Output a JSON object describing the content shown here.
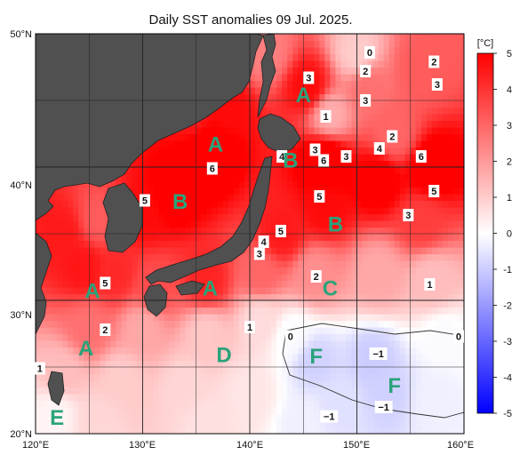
{
  "chart_data": {
    "type": "heatmap",
    "title": "Daily SST anomalies 09 Jul. 2025.",
    "x_ticks": [
      "120°E",
      "130°E",
      "140°E",
      "150°E",
      "160°E"
    ],
    "y_ticks": [
      "50°N",
      "40°N",
      "30°N",
      "20°N"
    ],
    "xlim": [
      120,
      160
    ],
    "ylim": [
      20,
      50
    ],
    "grid": true,
    "colorbar": {
      "unit": "[°C]",
      "ticks": [
        "5",
        "4",
        "3",
        "2",
        "1",
        "0",
        "-1",
        "-2",
        "-3",
        "-4",
        "-5"
      ],
      "range": [
        -5,
        5
      ],
      "colors": [
        "#0000ff",
        "#ffffff",
        "#ff0000"
      ]
    },
    "contour_labels": [
      {
        "text": "0",
        "lon": 151.2,
        "lat": 48.6
      },
      {
        "text": "2",
        "lon": 157.2,
        "lat": 47.9
      },
      {
        "text": "3",
        "lon": 145.5,
        "lat": 46.7
      },
      {
        "text": "2",
        "lon": 150.8,
        "lat": 47.2
      },
      {
        "text": "3",
        "lon": 157.5,
        "lat": 46.2
      },
      {
        "text": "3",
        "lon": 150.8,
        "lat": 45.0
      },
      {
        "text": "1",
        "lon": 147.1,
        "lat": 43.8
      },
      {
        "text": "2",
        "lon": 153.3,
        "lat": 42.3
      },
      {
        "text": "3",
        "lon": 146.1,
        "lat": 41.3
      },
      {
        "text": "4",
        "lon": 152.1,
        "lat": 41.4
      },
      {
        "text": "4",
        "lon": 143.0,
        "lat": 40.8
      },
      {
        "text": "6",
        "lon": 146.9,
        "lat": 40.5
      },
      {
        "text": "3",
        "lon": 149.0,
        "lat": 40.8
      },
      {
        "text": "6",
        "lon": 156.0,
        "lat": 40.8
      },
      {
        "text": "6",
        "lon": 136.5,
        "lat": 39.9
      },
      {
        "text": "5",
        "lon": 130.2,
        "lat": 37.5
      },
      {
        "text": "5",
        "lon": 146.5,
        "lat": 37.8
      },
      {
        "text": "5",
        "lon": 157.2,
        "lat": 38.2
      },
      {
        "text": "3",
        "lon": 154.8,
        "lat": 36.4
      },
      {
        "text": "5",
        "lon": 142.9,
        "lat": 35.2
      },
      {
        "text": "4",
        "lon": 141.3,
        "lat": 34.4
      },
      {
        "text": "3",
        "lon": 140.9,
        "lat": 33.5
      },
      {
        "text": "5",
        "lon": 126.5,
        "lat": 31.3
      },
      {
        "text": "2",
        "lon": 146.2,
        "lat": 31.8
      },
      {
        "text": "1",
        "lon": 156.8,
        "lat": 31.2
      },
      {
        "text": "2",
        "lon": 126.5,
        "lat": 27.8
      },
      {
        "text": "1",
        "lon": 140.0,
        "lat": 28.0
      },
      {
        "text": "0",
        "lon": 143.8,
        "lat": 27.3
      },
      {
        "text": "0",
        "lon": 159.5,
        "lat": 27.3
      },
      {
        "text": "1",
        "lon": 120.4,
        "lat": 24.9
      },
      {
        "text": "−1",
        "lon": 152.0,
        "lat": 26.0
      },
      {
        "text": "−1",
        "lon": 147.4,
        "lat": 21.3
      },
      {
        "text": "−1",
        "lon": 152.5,
        "lat": 22.0
      }
    ],
    "zone_labels": [
      {
        "text": "A",
        "lon": 145.0,
        "lat": 45.4
      },
      {
        "text": "A",
        "lon": 136.8,
        "lat": 41.7
      },
      {
        "text": "B",
        "lon": 143.8,
        "lat": 40.5
      },
      {
        "text": "B",
        "lon": 133.5,
        "lat": 37.4
      },
      {
        "text": "B",
        "lon": 148.0,
        "lat": 35.7
      },
      {
        "text": "A",
        "lon": 125.3,
        "lat": 30.7
      },
      {
        "text": "A",
        "lon": 136.3,
        "lat": 30.9
      },
      {
        "text": "C",
        "lon": 147.5,
        "lat": 30.9
      },
      {
        "text": "A",
        "lon": 124.7,
        "lat": 26.4
      },
      {
        "text": "D",
        "lon": 137.6,
        "lat": 25.9
      },
      {
        "text": "F",
        "lon": 146.2,
        "lat": 25.8
      },
      {
        "text": "F",
        "lon": 153.5,
        "lat": 23.6
      },
      {
        "text": "E",
        "lon": 122.0,
        "lat": 21.2
      }
    ],
    "anomaly_field": [
      {
        "lon": 122.5,
        "lat": 35.0,
        "a": 4.5
      },
      {
        "lon": 124.5,
        "lat": 32.5,
        "a": 4.6
      },
      {
        "lon": 127.5,
        "lat": 32.0,
        "a": 4.2
      },
      {
        "lon": 126.0,
        "lat": 36.0,
        "a": 3.2
      },
      {
        "lon": 130.0,
        "lat": 36.5,
        "a": 4.8
      },
      {
        "lon": 133.0,
        "lat": 38.0,
        "a": 5.3
      },
      {
        "lon": 136.0,
        "lat": 41.0,
        "a": 5.8
      },
      {
        "lon": 138.0,
        "lat": 44.5,
        "a": 4.8
      },
      {
        "lon": 134.5,
        "lat": 44.0,
        "a": 4.5
      },
      {
        "lon": 141.5,
        "lat": 48.5,
        "a": 2.5
      },
      {
        "lon": 145.5,
        "lat": 46.0,
        "a": 4.8
      },
      {
        "lon": 147.0,
        "lat": 40.5,
        "a": 5.8
      },
      {
        "lon": 152.0,
        "lat": 39.0,
        "a": 5.3
      },
      {
        "lon": 157.0,
        "lat": 40.0,
        "a": 5.5
      },
      {
        "lon": 147.0,
        "lat": 37.0,
        "a": 4.8
      },
      {
        "lon": 156.0,
        "lat": 36.0,
        "a": 3.8
      },
      {
        "lon": 156.0,
        "lat": 47.5,
        "a": 3.2
      },
      {
        "lon": 151.0,
        "lat": 46.0,
        "a": 2.8
      },
      {
        "lon": 147.5,
        "lat": 44.0,
        "a": 1.6
      },
      {
        "lon": 150.0,
        "lat": 48.5,
        "a": 1.0
      },
      {
        "lon": 153.5,
        "lat": 42.5,
        "a": 3.0
      },
      {
        "lon": 143.0,
        "lat": 35.0,
        "a": 4.5
      },
      {
        "lon": 141.0,
        "lat": 32.0,
        "a": 3.0
      },
      {
        "lon": 136.0,
        "lat": 31.5,
        "a": 4.3
      },
      {
        "lon": 131.0,
        "lat": 31.0,
        "a": 3.5
      },
      {
        "lon": 146.0,
        "lat": 32.0,
        "a": 2.2
      },
      {
        "lon": 152.0,
        "lat": 32.0,
        "a": 1.7
      },
      {
        "lon": 157.0,
        "lat": 31.5,
        "a": 1.3
      },
      {
        "lon": 125.0,
        "lat": 28.0,
        "a": 2.8
      },
      {
        "lon": 130.0,
        "lat": 28.0,
        "a": 1.7
      },
      {
        "lon": 136.0,
        "lat": 27.5,
        "a": 1.1
      },
      {
        "lon": 141.0,
        "lat": 28.5,
        "a": 0.7
      },
      {
        "lon": 122.5,
        "lat": 24.5,
        "a": 1.3
      },
      {
        "lon": 128.0,
        "lat": 24.0,
        "a": 1.0
      },
      {
        "lon": 134.0,
        "lat": 23.5,
        "a": 0.8
      },
      {
        "lon": 140.0,
        "lat": 23.0,
        "a": 0.5
      },
      {
        "lon": 136.0,
        "lat": 20.8,
        "a": 0.6
      },
      {
        "lon": 126.0,
        "lat": 20.8,
        "a": 0.8
      },
      {
        "lon": 146.0,
        "lat": 25.5,
        "a": -0.9
      },
      {
        "lon": 151.5,
        "lat": 25.5,
        "a": -1.0
      },
      {
        "lon": 153.0,
        "lat": 23.0,
        "a": -0.9
      },
      {
        "lon": 148.5,
        "lat": 22.0,
        "a": -0.6
      },
      {
        "lon": 158.0,
        "lat": 27.0,
        "a": -0.1
      },
      {
        "lon": 157.0,
        "lat": 22.5,
        "a": -0.3
      },
      {
        "lon": 144.0,
        "lat": 27.3,
        "a": -0.1
      },
      {
        "lon": 145.0,
        "lat": 20.8,
        "a": -0.3
      },
      {
        "lon": 121.8,
        "lat": 21.6,
        "a": 0.2
      }
    ]
  }
}
